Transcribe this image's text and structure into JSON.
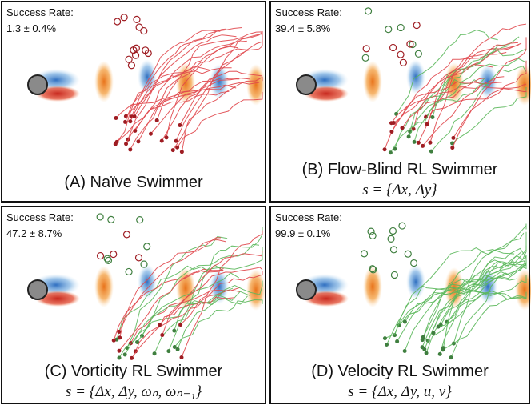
{
  "panels": [
    {
      "success_label": "Success Rate:",
      "success_value": "1.3 ± 0.4%",
      "title": "(A) Naïve Swimmer"
    },
    {
      "success_label": "Success Rate:",
      "success_value": "39.4 ± 5.8%",
      "title": "(B) Flow-Blind RL Swimmer",
      "formula": "s = {Δx, Δy}"
    },
    {
      "success_label": "Success Rate:",
      "success_value": "47.2 ± 8.7%",
      "title": "(C) Vorticity RL Swimmer",
      "formula": "s = {Δx, Δy, ωₙ, ωₙ₋₁}"
    },
    {
      "success_label": "Success Rate:",
      "success_value": "99.9 ± 0.1%",
      "title": "(D) Velocity RL Swimmer",
      "formula": "s = {Δx, Δy, u, v}"
    }
  ]
}
